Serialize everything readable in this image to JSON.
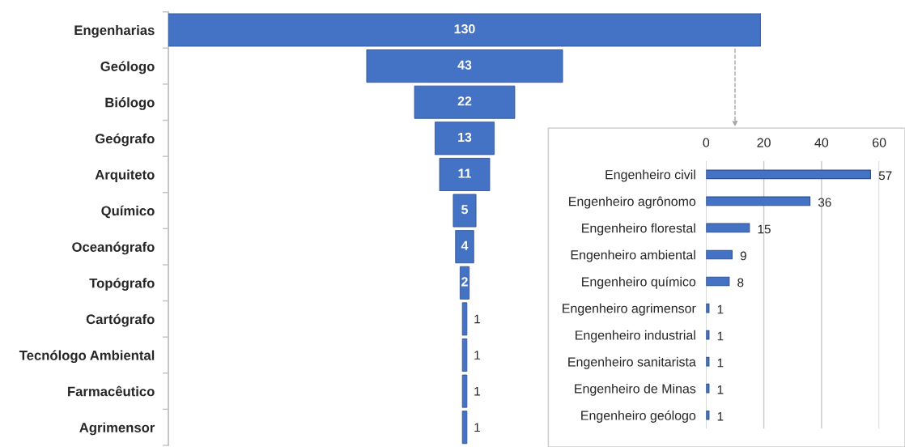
{
  "chart_data": [
    {
      "type": "other",
      "categories": [
        "Engenharias",
        "Geólogo",
        "Biólogo",
        "Geógrafo",
        "Arquiteto",
        "Químico",
        "Oceanógrafo",
        "Topógrafo",
        "Cartógrafo",
        "Tecnólogo Ambiental",
        "Farmacêutico",
        "Agrimensor"
      ],
      "values": [
        130,
        43,
        22,
        13,
        11,
        5,
        4,
        2,
        1,
        1,
        1,
        1
      ],
      "color": "#4472c4",
      "data_labels": true
    },
    {
      "type": "bar",
      "orientation": "horizontal",
      "categories": [
        "Engenheiro civil",
        "Engenheiro agrônomo",
        "Engenheiro florestal",
        "Engenheiro ambiental",
        "Engenheiro químico",
        "Engenheiro agrimensor",
        "Engenheiro industrial",
        "Engenheiro sanitarista",
        "Engenheiro de Minas",
        "Engenheiro geólogo"
      ],
      "values": [
        57,
        36,
        15,
        9,
        8,
        1,
        1,
        1,
        1,
        1
      ],
      "color": "#4472c4",
      "xlim": [
        0,
        60
      ],
      "xticks": [
        0,
        20,
        40,
        60
      ],
      "grid": "x",
      "data_labels": true
    }
  ]
}
